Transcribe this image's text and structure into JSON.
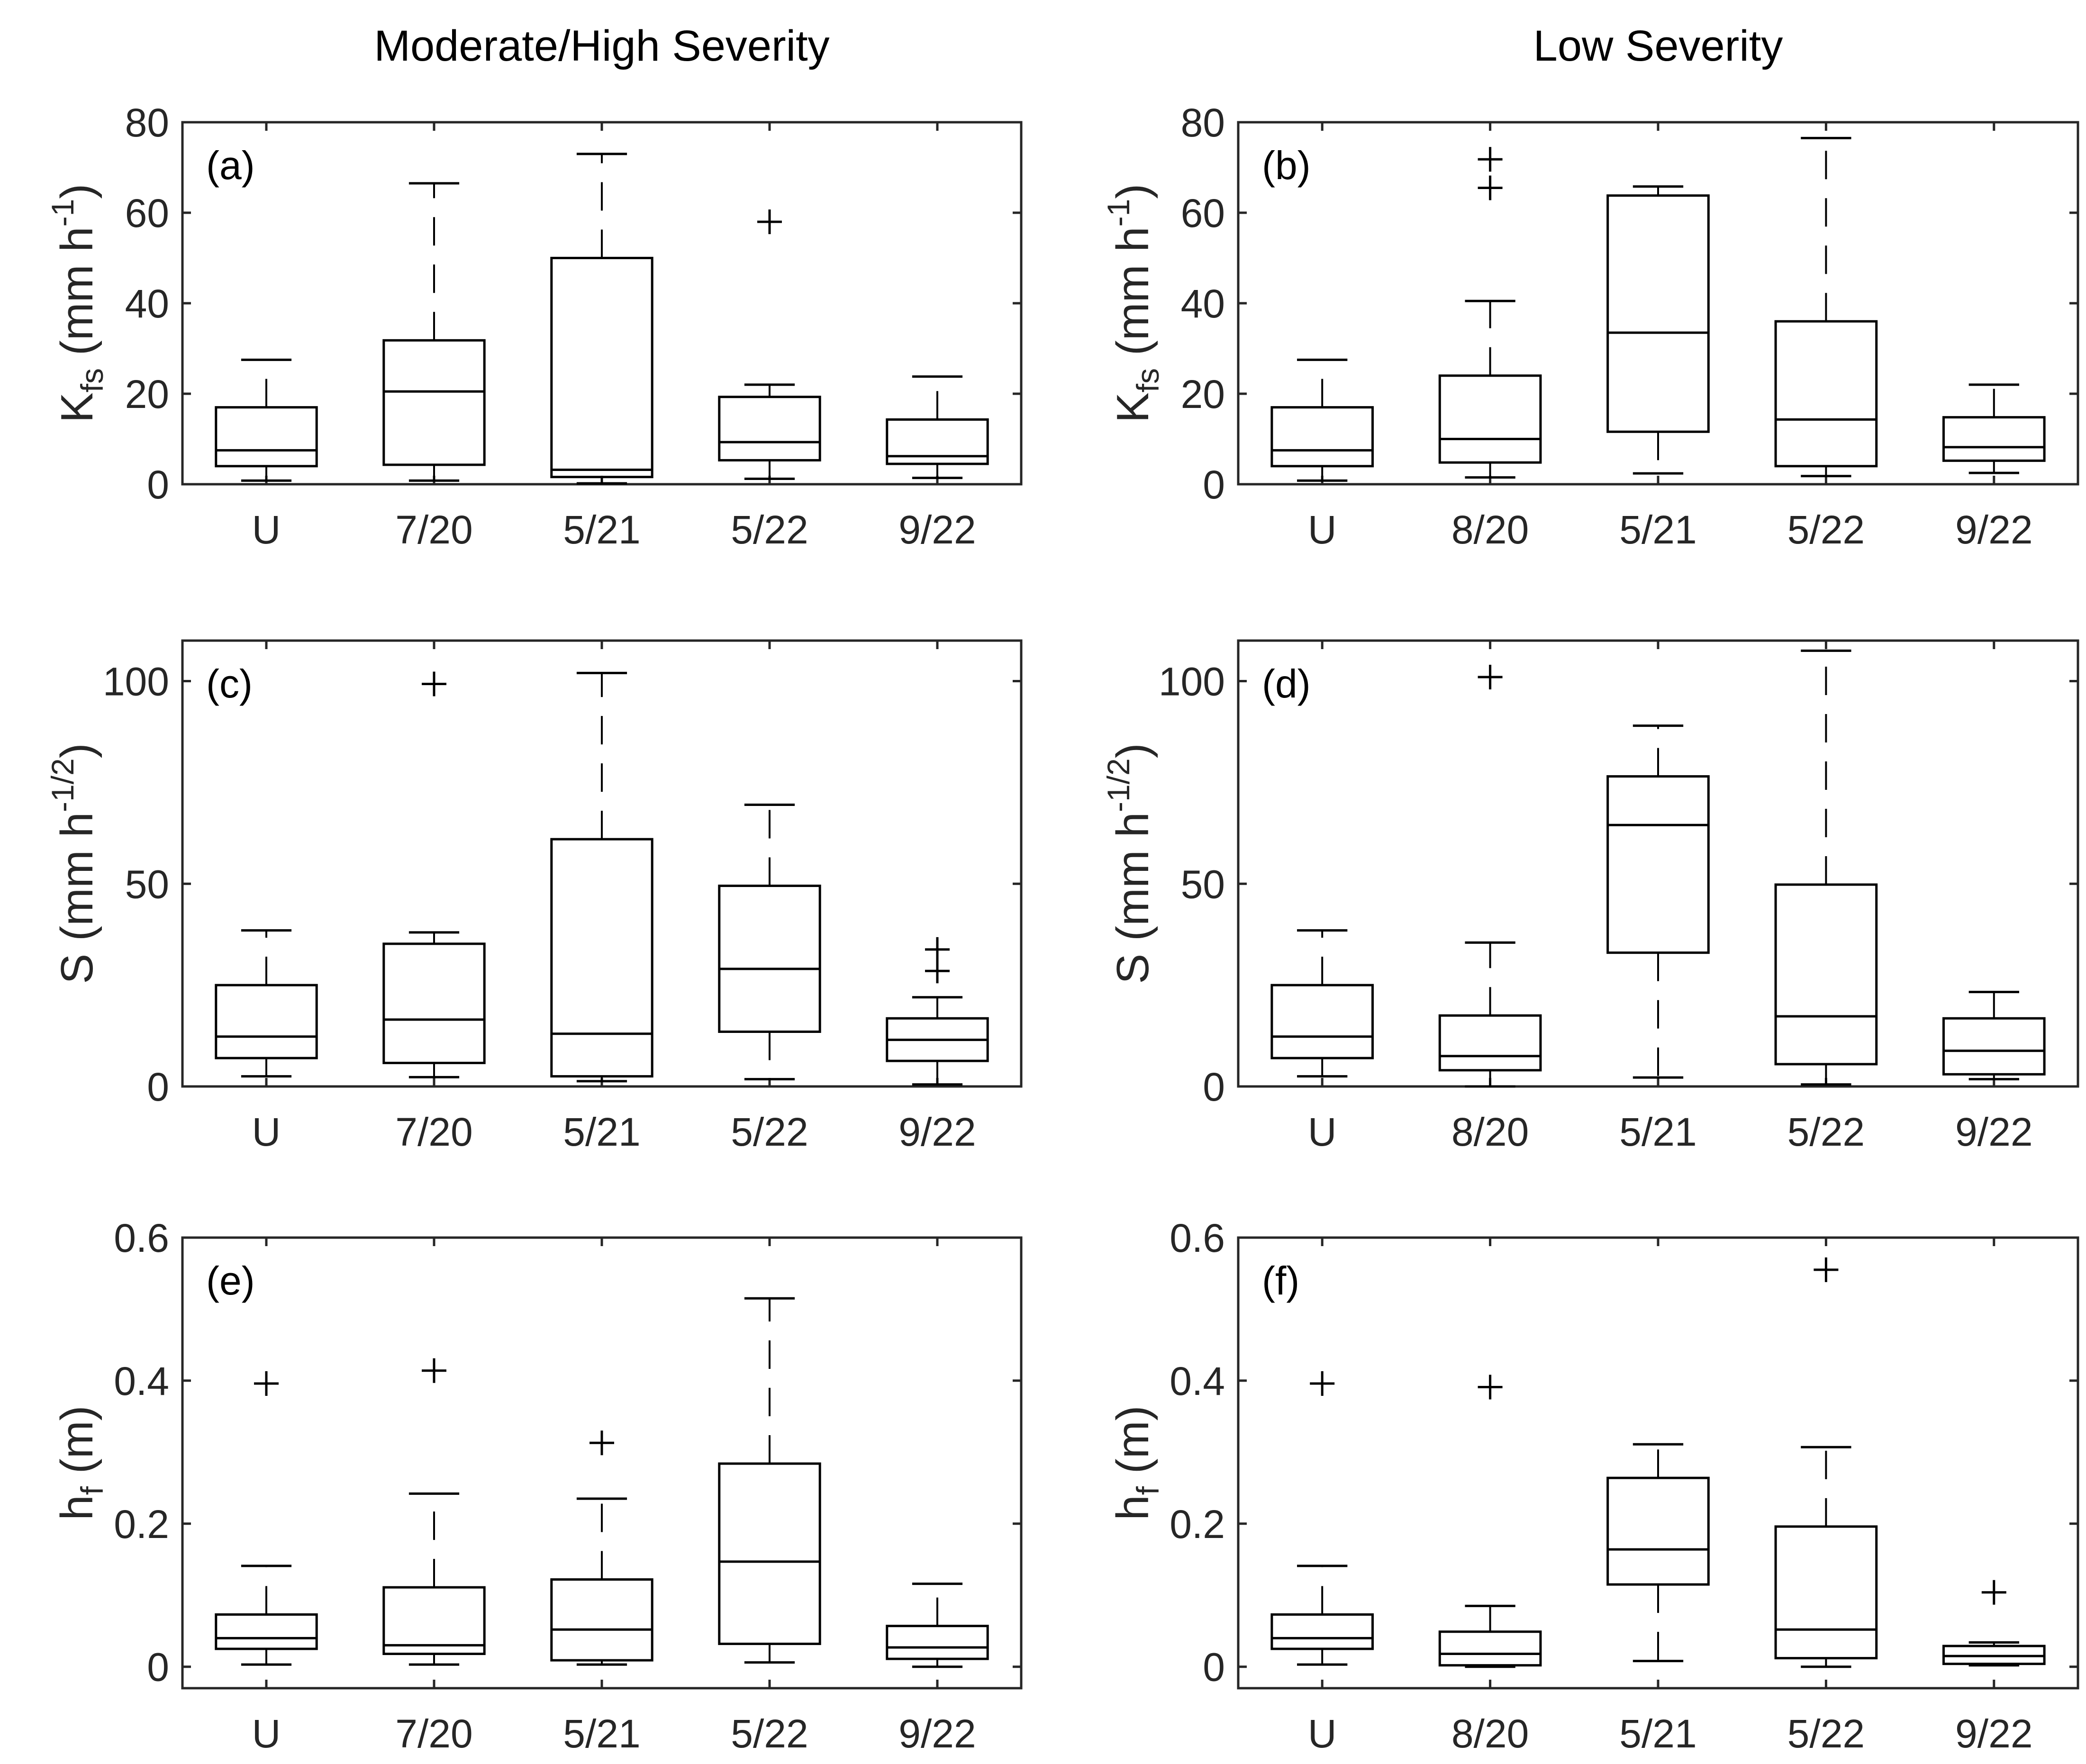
{
  "chart_data": [
    {
      "type": "box",
      "panel_label": "(a)",
      "column_title": "Moderate/High Severity",
      "ylabel": "K_fs (mm h^-1)",
      "ylabel_parts": {
        "main": "K",
        "sub": "fs",
        "unit_pre": " (mm h",
        "sup": "-1",
        "unit_post": ")"
      },
      "ylim": [
        0,
        80
      ],
      "yticks": [
        0,
        20,
        40,
        60,
        80
      ],
      "categories": [
        "U",
        "7/20",
        "5/21",
        "5/22",
        "9/22"
      ],
      "boxes": [
        {
          "whisker_low": 0.8,
          "q1": 4.0,
          "median": 7.5,
          "q3": 17.0,
          "whisker_high": 27.5,
          "outliers": []
        },
        {
          "whisker_low": 0.8,
          "q1": 4.3,
          "median": 20.5,
          "q3": 31.8,
          "whisker_high": 66.5,
          "outliers": []
        },
        {
          "whisker_low": 0.2,
          "q1": 1.6,
          "median": 3.2,
          "q3": 50.0,
          "whisker_high": 73.0,
          "outliers": []
        },
        {
          "whisker_low": 1.2,
          "q1": 5.3,
          "median": 9.3,
          "q3": 19.3,
          "whisker_high": 22.0,
          "outliers": [
            58.0
          ]
        },
        {
          "whisker_low": 1.4,
          "q1": 4.5,
          "median": 6.2,
          "q3": 14.3,
          "whisker_high": 23.8,
          "outliers": []
        }
      ]
    },
    {
      "type": "box",
      "panel_label": "(b)",
      "column_title": "Low Severity",
      "ylabel": "K_fs (mm h^-1)",
      "ylabel_parts": {
        "main": "K",
        "sub": "fs",
        "unit_pre": " (mm h",
        "sup": "-1",
        "unit_post": ")"
      },
      "ylim": [
        0,
        80
      ],
      "yticks": [
        0,
        20,
        40,
        60,
        80
      ],
      "categories": [
        "U",
        "8/20",
        "5/21",
        "5/22",
        "9/22"
      ],
      "boxes": [
        {
          "whisker_low": 0.8,
          "q1": 4.0,
          "median": 7.5,
          "q3": 17.0,
          "whisker_high": 27.5,
          "outliers": []
        },
        {
          "whisker_low": 1.5,
          "q1": 4.8,
          "median": 10.0,
          "q3": 24.0,
          "whisker_high": 40.5,
          "outliers": [
            65.5,
            71.8
          ]
        },
        {
          "whisker_low": 2.4,
          "q1": 11.6,
          "median": 33.5,
          "q3": 63.8,
          "whisker_high": 65.8,
          "outliers": []
        },
        {
          "whisker_low": 1.8,
          "q1": 4.0,
          "median": 14.3,
          "q3": 36.0,
          "whisker_high": 76.5,
          "outliers": []
        },
        {
          "whisker_low": 2.5,
          "q1": 5.2,
          "median": 8.2,
          "q3": 14.8,
          "whisker_high": 22.0,
          "outliers": []
        }
      ]
    },
    {
      "type": "box",
      "panel_label": "(c)",
      "column_title": "",
      "ylabel": "S (mm h^-1/2)",
      "ylabel_parts": {
        "main": "S",
        "sub": "",
        "unit_pre": " (mm h",
        "sup": "-1/2",
        "unit_post": ")"
      },
      "ylim": [
        0,
        110
      ],
      "yticks": [
        0,
        50,
        100
      ],
      "categories": [
        "U",
        "7/20",
        "5/21",
        "5/22",
        "9/22"
      ],
      "boxes": [
        {
          "whisker_low": 2.5,
          "q1": 7.0,
          "median": 12.3,
          "q3": 25.0,
          "whisker_high": 38.5,
          "outliers": []
        },
        {
          "whisker_low": 2.3,
          "q1": 5.8,
          "median": 16.5,
          "q3": 35.2,
          "whisker_high": 38.0,
          "outliers": [
            99.3
          ]
        },
        {
          "whisker_low": 1.3,
          "q1": 2.5,
          "median": 13.0,
          "q3": 61.0,
          "whisker_high": 102.0,
          "outliers": []
        },
        {
          "whisker_low": 1.8,
          "q1": 13.5,
          "median": 29.0,
          "q3": 49.5,
          "whisker_high": 69.5,
          "outliers": []
        },
        {
          "whisker_low": 0.5,
          "q1": 6.3,
          "median": 11.5,
          "q3": 16.8,
          "whisker_high": 22.0,
          "outliers": [
            28.5,
            33.8
          ]
        }
      ]
    },
    {
      "type": "box",
      "panel_label": "(d)",
      "column_title": "",
      "ylabel": "S (mm h^-1/2)",
      "ylabel_parts": {
        "main": "S",
        "sub": "",
        "unit_pre": " (mm h",
        "sup": "-1/2",
        "unit_post": ")"
      },
      "ylim": [
        0,
        110
      ],
      "yticks": [
        0,
        50,
        100
      ],
      "categories": [
        "U",
        "8/20",
        "5/21",
        "5/22",
        "9/22"
      ],
      "boxes": [
        {
          "whisker_low": 2.5,
          "q1": 7.0,
          "median": 12.3,
          "q3": 25.0,
          "whisker_high": 38.5,
          "outliers": []
        },
        {
          "whisker_low": 0.0,
          "q1": 4.0,
          "median": 7.5,
          "q3": 17.5,
          "whisker_high": 35.5,
          "outliers": [
            101.0
          ]
        },
        {
          "whisker_low": 2.2,
          "q1": 33.0,
          "median": 64.5,
          "q3": 76.5,
          "whisker_high": 89.0,
          "outliers": []
        },
        {
          "whisker_low": 0.5,
          "q1": 5.5,
          "median": 17.3,
          "q3": 49.8,
          "whisker_high": 107.5,
          "outliers": []
        },
        {
          "whisker_low": 1.8,
          "q1": 3.0,
          "median": 8.8,
          "q3": 16.8,
          "whisker_high": 23.3,
          "outliers": []
        }
      ]
    },
    {
      "type": "box",
      "panel_label": "(e)",
      "column_title": "",
      "ylabel": "h_f (m)",
      "ylabel_parts": {
        "main": "h",
        "sub": "f",
        "unit_pre": " (m)",
        "sup": "",
        "unit_post": ""
      },
      "ylim": [
        -0.03,
        0.6
      ],
      "yticks": [
        0,
        0.2,
        0.4,
        0.6
      ],
      "ytick_labels": [
        "0",
        "0.2",
        "0.4",
        "0.6"
      ],
      "categories": [
        "U",
        "7/20",
        "5/21",
        "5/22",
        "9/22"
      ],
      "boxes": [
        {
          "whisker_low": 0.003,
          "q1": 0.025,
          "median": 0.04,
          "q3": 0.073,
          "whisker_high": 0.141,
          "outliers": [
            0.396
          ]
        },
        {
          "whisker_low": 0.003,
          "q1": 0.018,
          "median": 0.03,
          "q3": 0.111,
          "whisker_high": 0.242,
          "outliers": [
            0.414
          ]
        },
        {
          "whisker_low": 0.003,
          "q1": 0.009,
          "median": 0.052,
          "q3": 0.122,
          "whisker_high": 0.235,
          "outliers": [
            0.313
          ]
        },
        {
          "whisker_low": 0.006,
          "q1": 0.032,
          "median": 0.147,
          "q3": 0.284,
          "whisker_high": 0.515,
          "outliers": []
        },
        {
          "whisker_low": 0.0,
          "q1": 0.011,
          "median": 0.027,
          "q3": 0.057,
          "whisker_high": 0.116,
          "outliers": []
        }
      ]
    },
    {
      "type": "box",
      "panel_label": "(f)",
      "column_title": "",
      "ylabel": "h_f (m)",
      "ylabel_parts": {
        "main": "h",
        "sub": "f",
        "unit_pre": " (m)",
        "sup": "",
        "unit_post": ""
      },
      "ylim": [
        -0.03,
        0.6
      ],
      "yticks": [
        0,
        0.2,
        0.4,
        0.6
      ],
      "ytick_labels": [
        "0",
        "0.2",
        "0.4",
        "0.6"
      ],
      "categories": [
        "U",
        "8/20",
        "5/21",
        "5/22",
        "9/22"
      ],
      "boxes": [
        {
          "whisker_low": 0.003,
          "q1": 0.025,
          "median": 0.04,
          "q3": 0.073,
          "whisker_high": 0.141,
          "outliers": [
            0.396
          ]
        },
        {
          "whisker_low": 0.0,
          "q1": 0.002,
          "median": 0.018,
          "q3": 0.049,
          "whisker_high": 0.085,
          "outliers": [
            0.391
          ]
        },
        {
          "whisker_low": 0.008,
          "q1": 0.115,
          "median": 0.164,
          "q3": 0.264,
          "whisker_high": 0.311,
          "outliers": []
        },
        {
          "whisker_low": 0.0,
          "q1": 0.012,
          "median": 0.052,
          "q3": 0.196,
          "whisker_high": 0.307,
          "outliers": [
            0.555
          ]
        },
        {
          "whisker_low": 0.002,
          "q1": 0.004,
          "median": 0.015,
          "q3": 0.029,
          "whisker_high": 0.034,
          "outliers": [
            0.104
          ]
        }
      ]
    }
  ]
}
